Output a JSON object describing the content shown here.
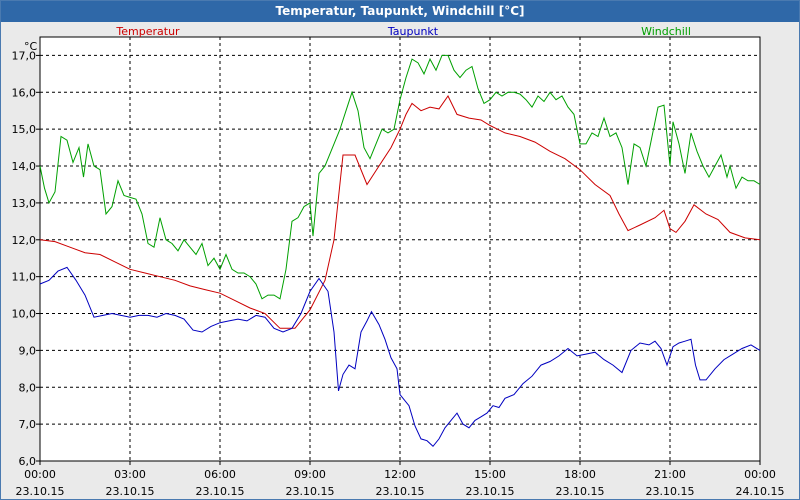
{
  "window": {
    "title": "Temperatur, Taupunkt, Windchill [°C]"
  },
  "chart_data": {
    "type": "line",
    "title": "Temperatur, Taupunkt, Windchill [°C]",
    "ylabel": "°C",
    "ylim": [
      6.0,
      17.5
    ],
    "y_ticks": [
      "6,0",
      "7,0",
      "8,0",
      "9,0",
      "10,0",
      "11,0",
      "12,0",
      "13,0",
      "14,0",
      "15,0",
      "16,0",
      "17,0"
    ],
    "x_ticks": [
      {
        "time": "00:00",
        "date": "23.10.15"
      },
      {
        "time": "03:00",
        "date": "23.10.15"
      },
      {
        "time": "06:00",
        "date": "23.10.15"
      },
      {
        "time": "09:00",
        "date": "23.10.15"
      },
      {
        "time": "12:00",
        "date": "23.10.15"
      },
      {
        "time": "15:00",
        "date": "23.10.15"
      },
      {
        "time": "18:00",
        "date": "23.10.15"
      },
      {
        "time": "21:00",
        "date": "23.10.15"
      },
      {
        "time": "00:00",
        "date": "24.10.15"
      }
    ],
    "grid": true,
    "series": [
      {
        "name": "Temperatur",
        "color": "#cc0000",
        "points": [
          [
            0,
            12.0
          ],
          [
            0.5,
            11.95
          ],
          [
            1,
            11.8
          ],
          [
            1.5,
            11.65
          ],
          [
            2,
            11.6
          ],
          [
            2.5,
            11.4
          ],
          [
            3,
            11.2
          ],
          [
            3.5,
            11.1
          ],
          [
            4,
            11.0
          ],
          [
            4.5,
            10.9
          ],
          [
            5,
            10.75
          ],
          [
            5.5,
            10.65
          ],
          [
            6,
            10.55
          ],
          [
            6.5,
            10.35
          ],
          [
            7,
            10.15
          ],
          [
            7.5,
            10.0
          ],
          [
            8,
            9.6
          ],
          [
            8.5,
            9.6
          ],
          [
            9,
            10.1
          ],
          [
            9.5,
            10.9
          ],
          [
            9.8,
            12.0
          ],
          [
            10.1,
            14.3
          ],
          [
            10.5,
            14.3
          ],
          [
            10.9,
            13.5
          ],
          [
            11.3,
            14.0
          ],
          [
            11.7,
            14.5
          ],
          [
            12.0,
            15.0
          ],
          [
            12.2,
            15.4
          ],
          [
            12.4,
            15.7
          ],
          [
            12.7,
            15.5
          ],
          [
            13.0,
            15.6
          ],
          [
            13.3,
            15.55
          ],
          [
            13.6,
            15.9
          ],
          [
            13.9,
            15.4
          ],
          [
            14.3,
            15.3
          ],
          [
            14.7,
            15.25
          ],
          [
            15.0,
            15.1
          ],
          [
            15.5,
            14.9
          ],
          [
            16.0,
            14.8
          ],
          [
            16.5,
            14.65
          ],
          [
            17.0,
            14.4
          ],
          [
            17.5,
            14.2
          ],
          [
            18.0,
            13.9
          ],
          [
            18.5,
            13.5
          ],
          [
            19.0,
            13.2
          ],
          [
            19.3,
            12.7
          ],
          [
            19.6,
            12.25
          ],
          [
            20.0,
            12.4
          ],
          [
            20.5,
            12.6
          ],
          [
            20.8,
            12.8
          ],
          [
            21.0,
            12.3
          ],
          [
            21.2,
            12.2
          ],
          [
            21.5,
            12.5
          ],
          [
            21.8,
            12.95
          ],
          [
            22.2,
            12.7
          ],
          [
            22.6,
            12.55
          ],
          [
            23.0,
            12.2
          ],
          [
            23.5,
            12.05
          ],
          [
            24.0,
            12.0
          ]
        ]
      },
      {
        "name": "Taupunkt",
        "color": "#0000c0",
        "points": [
          [
            0,
            10.8
          ],
          [
            0.3,
            10.9
          ],
          [
            0.6,
            11.15
          ],
          [
            0.9,
            11.25
          ],
          [
            1.2,
            10.9
          ],
          [
            1.5,
            10.5
          ],
          [
            1.8,
            9.9
          ],
          [
            2.1,
            9.95
          ],
          [
            2.4,
            10.0
          ],
          [
            2.7,
            9.95
          ],
          [
            3.0,
            9.9
          ],
          [
            3.3,
            9.95
          ],
          [
            3.6,
            9.95
          ],
          [
            3.9,
            9.9
          ],
          [
            4.2,
            10.0
          ],
          [
            4.5,
            9.95
          ],
          [
            4.8,
            9.85
          ],
          [
            5.1,
            9.55
          ],
          [
            5.4,
            9.5
          ],
          [
            5.7,
            9.65
          ],
          [
            6.0,
            9.75
          ],
          [
            6.3,
            9.8
          ],
          [
            6.6,
            9.85
          ],
          [
            6.9,
            9.8
          ],
          [
            7.2,
            9.95
          ],
          [
            7.5,
            9.9
          ],
          [
            7.8,
            9.6
          ],
          [
            8.1,
            9.5
          ],
          [
            8.4,
            9.6
          ],
          [
            8.7,
            10.0
          ],
          [
            9.0,
            10.6
          ],
          [
            9.3,
            10.95
          ],
          [
            9.6,
            10.6
          ],
          [
            9.8,
            9.5
          ],
          [
            9.95,
            7.9
          ],
          [
            10.1,
            8.35
          ],
          [
            10.3,
            8.6
          ],
          [
            10.5,
            8.5
          ],
          [
            10.7,
            9.5
          ],
          [
            10.9,
            9.8
          ],
          [
            11.05,
            10.05
          ],
          [
            11.3,
            9.7
          ],
          [
            11.5,
            9.3
          ],
          [
            11.7,
            8.8
          ],
          [
            11.9,
            8.5
          ],
          [
            12.0,
            7.8
          ],
          [
            12.1,
            7.7
          ],
          [
            12.3,
            7.5
          ],
          [
            12.5,
            6.95
          ],
          [
            12.7,
            6.6
          ],
          [
            12.9,
            6.55
          ],
          [
            13.1,
            6.4
          ],
          [
            13.3,
            6.6
          ],
          [
            13.5,
            6.9
          ],
          [
            13.7,
            7.1
          ],
          [
            13.9,
            7.3
          ],
          [
            14.1,
            7.0
          ],
          [
            14.3,
            6.9
          ],
          [
            14.5,
            7.1
          ],
          [
            14.7,
            7.2
          ],
          [
            14.9,
            7.3
          ],
          [
            15.1,
            7.5
          ],
          [
            15.3,
            7.45
          ],
          [
            15.5,
            7.7
          ],
          [
            15.8,
            7.8
          ],
          [
            16.1,
            8.1
          ],
          [
            16.4,
            8.3
          ],
          [
            16.7,
            8.6
          ],
          [
            17.0,
            8.7
          ],
          [
            17.3,
            8.85
          ],
          [
            17.6,
            9.05
          ],
          [
            17.9,
            8.85
          ],
          [
            18.2,
            8.9
          ],
          [
            18.5,
            8.95
          ],
          [
            18.8,
            8.75
          ],
          [
            19.1,
            8.6
          ],
          [
            19.4,
            8.4
          ],
          [
            19.7,
            9.0
          ],
          [
            20.0,
            9.2
          ],
          [
            20.3,
            9.15
          ],
          [
            20.5,
            9.25
          ],
          [
            20.7,
            9.05
          ],
          [
            20.9,
            8.6
          ],
          [
            21.1,
            9.1
          ],
          [
            21.3,
            9.2
          ],
          [
            21.5,
            9.25
          ],
          [
            21.7,
            9.3
          ],
          [
            21.85,
            8.6
          ],
          [
            22.0,
            8.2
          ],
          [
            22.2,
            8.2
          ],
          [
            22.5,
            8.5
          ],
          [
            22.8,
            8.75
          ],
          [
            23.1,
            8.9
          ],
          [
            23.4,
            9.05
          ],
          [
            23.7,
            9.15
          ],
          [
            24.0,
            9.0
          ]
        ]
      },
      {
        "name": "Windchill",
        "color": "#00a000",
        "points": [
          [
            0,
            14.0
          ],
          [
            0.15,
            13.4
          ],
          [
            0.3,
            13.0
          ],
          [
            0.5,
            13.3
          ],
          [
            0.7,
            14.8
          ],
          [
            0.9,
            14.7
          ],
          [
            1.1,
            14.1
          ],
          [
            1.3,
            14.5
          ],
          [
            1.45,
            13.7
          ],
          [
            1.6,
            14.6
          ],
          [
            1.8,
            14.0
          ],
          [
            2.0,
            13.9
          ],
          [
            2.2,
            12.7
          ],
          [
            2.4,
            12.9
          ],
          [
            2.6,
            13.6
          ],
          [
            2.8,
            13.2
          ],
          [
            3.0,
            13.15
          ],
          [
            3.2,
            13.1
          ],
          [
            3.4,
            12.7
          ],
          [
            3.6,
            11.9
          ],
          [
            3.8,
            11.8
          ],
          [
            4.0,
            12.6
          ],
          [
            4.2,
            12.0
          ],
          [
            4.4,
            11.9
          ],
          [
            4.6,
            11.7
          ],
          [
            4.8,
            12.0
          ],
          [
            5.0,
            11.8
          ],
          [
            5.2,
            11.6
          ],
          [
            5.4,
            11.9
          ],
          [
            5.6,
            11.3
          ],
          [
            5.8,
            11.5
          ],
          [
            6.0,
            11.2
          ],
          [
            6.2,
            11.6
          ],
          [
            6.4,
            11.2
          ],
          [
            6.6,
            11.1
          ],
          [
            6.8,
            11.1
          ],
          [
            7.0,
            11.0
          ],
          [
            7.2,
            10.8
          ],
          [
            7.4,
            10.4
          ],
          [
            7.6,
            10.5
          ],
          [
            7.8,
            10.5
          ],
          [
            8.0,
            10.4
          ],
          [
            8.2,
            11.2
          ],
          [
            8.4,
            12.5
          ],
          [
            8.6,
            12.6
          ],
          [
            8.8,
            12.9
          ],
          [
            9.0,
            13.0
          ],
          [
            9.1,
            12.1
          ],
          [
            9.3,
            13.8
          ],
          [
            9.5,
            14.0
          ],
          [
            9.8,
            14.6
          ],
          [
            10.0,
            15.0
          ],
          [
            10.2,
            15.5
          ],
          [
            10.4,
            16.0
          ],
          [
            10.6,
            15.5
          ],
          [
            10.8,
            14.5
          ],
          [
            11.0,
            14.2
          ],
          [
            11.2,
            14.6
          ],
          [
            11.4,
            15.0
          ],
          [
            11.6,
            14.9
          ],
          [
            11.8,
            15.0
          ],
          [
            12.0,
            15.8
          ],
          [
            12.2,
            16.4
          ],
          [
            12.4,
            16.9
          ],
          [
            12.6,
            16.8
          ],
          [
            12.8,
            16.5
          ],
          [
            13.0,
            16.9
          ],
          [
            13.2,
            16.6
          ],
          [
            13.4,
            17.0
          ],
          [
            13.6,
            17.0
          ],
          [
            13.8,
            16.6
          ],
          [
            14.0,
            16.4
          ],
          [
            14.2,
            16.6
          ],
          [
            14.4,
            16.7
          ],
          [
            14.6,
            16.1
          ],
          [
            14.8,
            15.7
          ],
          [
            15.0,
            15.8
          ],
          [
            15.2,
            16.0
          ],
          [
            15.4,
            15.9
          ],
          [
            15.6,
            16.0
          ],
          [
            15.8,
            16.0
          ],
          [
            16.0,
            15.95
          ],
          [
            16.2,
            15.8
          ],
          [
            16.4,
            15.6
          ],
          [
            16.6,
            15.9
          ],
          [
            16.8,
            15.75
          ],
          [
            17.0,
            16.0
          ],
          [
            17.2,
            15.8
          ],
          [
            17.4,
            15.9
          ],
          [
            17.6,
            15.6
          ],
          [
            17.8,
            15.4
          ],
          [
            18.0,
            14.6
          ],
          [
            18.2,
            14.6
          ],
          [
            18.4,
            14.9
          ],
          [
            18.6,
            14.8
          ],
          [
            18.8,
            15.3
          ],
          [
            19.0,
            14.8
          ],
          [
            19.2,
            14.9
          ],
          [
            19.4,
            14.5
          ],
          [
            19.6,
            13.5
          ],
          [
            19.8,
            14.6
          ],
          [
            20.0,
            14.5
          ],
          [
            20.2,
            14.0
          ],
          [
            20.4,
            14.8
          ],
          [
            20.6,
            15.6
          ],
          [
            20.8,
            15.65
          ],
          [
            21.0,
            14.0
          ],
          [
            21.1,
            15.2
          ],
          [
            21.3,
            14.6
          ],
          [
            21.5,
            13.8
          ],
          [
            21.7,
            14.9
          ],
          [
            21.9,
            14.4
          ],
          [
            22.1,
            14.0
          ],
          [
            22.3,
            13.7
          ],
          [
            22.5,
            14.0
          ],
          [
            22.7,
            14.3
          ],
          [
            22.9,
            13.7
          ],
          [
            23.0,
            14.0
          ],
          [
            23.2,
            13.4
          ],
          [
            23.4,
            13.7
          ],
          [
            23.6,
            13.6
          ],
          [
            23.8,
            13.6
          ],
          [
            24.0,
            13.5
          ]
        ]
      }
    ]
  }
}
